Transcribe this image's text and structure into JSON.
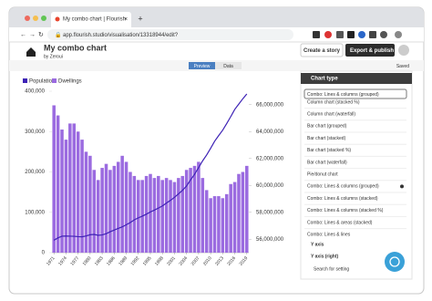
{
  "browser": {
    "tab_title": "My combo chart | Flourish",
    "url": "app.flourish.studio/visualisation/13318944/edit?"
  },
  "header": {
    "title": "My combo chart",
    "byline": "by Zeroui",
    "buttons": [
      "Create a story",
      "Export & publish"
    ]
  },
  "toolbar": {
    "tabs": [
      "Preview",
      "Data"
    ],
    "status": "Saved"
  },
  "panel": {
    "section": "Chart type",
    "selected": "Combo: Lines & columns (grouped)",
    "options": [
      "Column chart (stacked %)",
      "Column chart (waterfall)",
      "Bar chart (grouped)",
      "Bar chart (stacked)",
      "Bar chart (stacked %)",
      "Bar chart (waterfall)",
      "Pie/donut chart",
      "Combo: Lines & columns (grouped)",
      "Combo: Lines & columns (stacked)",
      "Combo: Lines & columns (stacked %)",
      "Combo: Lines & areas (stacked)",
      "Combo: Lines & lines"
    ],
    "sections": [
      "Y axis",
      "Y axis (right)"
    ],
    "search": "Search for setting"
  },
  "chart_data": {
    "type": "combo",
    "grid": false,
    "x": [
      1971,
      1972,
      1973,
      1974,
      1975,
      1976,
      1977,
      1978,
      1979,
      1980,
      1981,
      1982,
      1983,
      1984,
      1985,
      1986,
      1987,
      1988,
      1989,
      1990,
      1991,
      1992,
      1993,
      1994,
      1995,
      1996,
      1997,
      1998,
      1999,
      2000,
      2001,
      2002,
      2003,
      2004,
      2005,
      2006,
      2007,
      2008,
      2009,
      2010,
      2011,
      2012,
      2013,
      2014,
      2015,
      2016,
      2017,
      2018,
      2019
    ],
    "xlim": [
      1970.5,
      2019.5
    ],
    "xticks": [
      1971,
      1974,
      1977,
      1980,
      1983,
      1986,
      1989,
      1992,
      1995,
      1998,
      2001,
      2004,
      2007,
      2010,
      2013,
      2016,
      2019
    ],
    "ylim": [
      0,
      400000
    ],
    "yticks": [
      0,
      {
        "value": 100000,
        "label": "100,000"
      },
      {
        "value": 200000,
        "label": "200,000"
      },
      {
        "value": 300000,
        "label": "300,000"
      },
      {
        "value": 400000,
        "label": "400,000"
      }
    ],
    "y2lim": [
      55000000,
      67000000
    ],
    "y2ticks": [
      {
        "value": 56000000,
        "label": "56,000,000"
      },
      {
        "value": 58000000,
        "label": "58,000,000"
      },
      {
        "value": 60000000,
        "label": "60,000,000"
      },
      {
        "value": 62000000,
        "label": "62,000,000"
      },
      {
        "value": 64000000,
        "label": "64,000,000"
      },
      {
        "value": 66000000,
        "label": "66,000,000"
      }
    ],
    "series": [
      {
        "name": "Population",
        "color": "#3d22b5",
        "type": "line",
        "axis": "y2",
        "values": [
          55928000,
          56097000,
          56223000,
          56236000,
          56226000,
          56216000,
          56190000,
          56178000,
          56240000,
          56330000,
          56357000,
          56291000,
          56316000,
          56409000,
          56554000,
          56684000,
          56804000,
          56916000,
          57076000,
          57237000,
          57439000,
          57585000,
          57714000,
          57862000,
          58025000,
          58164000,
          58314000,
          58475000,
          58684000,
          58886000,
          59113000,
          59366000,
          59637000,
          59950000,
          60413000,
          60827000,
          61319000,
          61824000,
          62260000,
          62759000,
          63285000,
          63705000,
          64106000,
          64597000,
          65110000,
          65648000,
          66040000,
          66436000,
          66797000
        ]
      },
      {
        "name": "Dwellings",
        "color": "#9b6be0",
        "type": "bar",
        "axis": "y",
        "values": [
          365000,
          340000,
          305000,
          280000,
          320000,
          320000,
          300000,
          280000,
          250000,
          240000,
          205000,
          180000,
          210000,
          220000,
          205000,
          215000,
          225000,
          240000,
          225000,
          200000,
          190000,
          180000,
          180000,
          190000,
          195000,
          185000,
          190000,
          180000,
          185000,
          180000,
          175000,
          185000,
          190000,
          205000,
          210000,
          215000,
          225000,
          185000,
          155000,
          135000,
          140000,
          140000,
          135000,
          145000,
          170000,
          175000,
          195000,
          200000,
          215000
        ]
      }
    ]
  }
}
